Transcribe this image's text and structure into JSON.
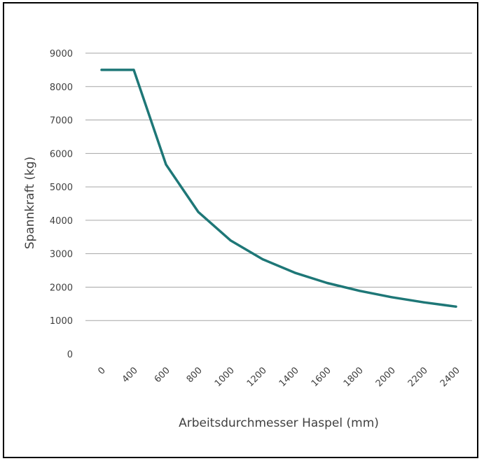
{
  "chart_data": {
    "type": "line",
    "title": "",
    "xlabel": "Arbeitsdurchmesser Haspel (mm)",
    "ylabel": "Spannkraft  (kg)",
    "x": [
      0,
      400,
      600,
      800,
      1000,
      1200,
      1400,
      1600,
      1800,
      2000,
      2200,
      2400
    ],
    "x_tick_labels": [
      "0",
      "400",
      "600",
      "800",
      "1000",
      "1200",
      "1400",
      "1600",
      "1800",
      "2000",
      "2200",
      "2400"
    ],
    "y_tick_labels": [
      "0",
      "1000",
      "2000",
      "3000",
      "4000",
      "5000",
      "6000",
      "7000",
      "8000",
      "9000"
    ],
    "ylim": [
      0,
      9000
    ],
    "grid": true,
    "legend": "none",
    "series": [
      {
        "values": [
          8500,
          8500,
          5667,
          4250,
          3400,
          2833,
          2429,
          2125,
          1889,
          1700,
          1545,
          1417
        ],
        "color": "#1e7777"
      }
    ]
  }
}
